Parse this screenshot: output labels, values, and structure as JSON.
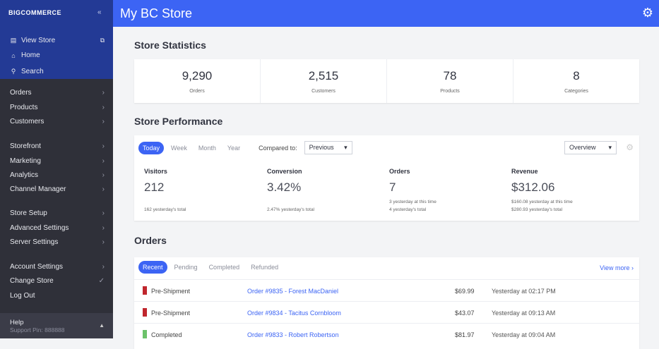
{
  "sidebar": {
    "logo": "BIGCOMMERCE",
    "top": [
      {
        "label": "View Store",
        "icon": "store-icon"
      },
      {
        "label": "Home",
        "icon": "home-icon"
      },
      {
        "label": "Search",
        "icon": "search-icon"
      }
    ],
    "groups": [
      [
        "Orders",
        "Products",
        "Customers"
      ],
      [
        "Storefront",
        "Marketing",
        "Analytics",
        "Channel Manager"
      ],
      [
        "Store Setup",
        "Advanced Settings",
        "Server Settings"
      ],
      [
        "Account Settings",
        "Change Store",
        "Log Out"
      ]
    ],
    "help": "Help",
    "support_pin": "Support Pin: 888888"
  },
  "header": {
    "title": "My BC Store"
  },
  "stats": {
    "title": "Store Statistics",
    "items": [
      {
        "value": "9,290",
        "label": "Orders"
      },
      {
        "value": "2,515",
        "label": "Customers"
      },
      {
        "value": "78",
        "label": "Products"
      },
      {
        "value": "8",
        "label": "Categories"
      }
    ]
  },
  "performance": {
    "title": "Store Performance",
    "tabs": [
      "Today",
      "Week",
      "Month",
      "Year"
    ],
    "compared_label": "Compared to:",
    "compared_value": "Previous",
    "view": "Overview",
    "metrics": [
      {
        "label": "Visitors",
        "value": "212",
        "sub": [
          "",
          "162 yesterday's total"
        ]
      },
      {
        "label": "Conversion",
        "value": "3.42%",
        "sub": [
          "",
          "2.47% yesterday's total"
        ]
      },
      {
        "label": "Orders",
        "value": "7",
        "sub": [
          "3 yesterday at this time",
          "4 yesterday's total"
        ]
      },
      {
        "label": "Revenue",
        "value": "$312.06",
        "sub": [
          "$160.08 yesterday at this time",
          "$280.93 yesterday's total"
        ]
      }
    ]
  },
  "orders": {
    "title": "Orders",
    "tabs": [
      "Recent",
      "Pending",
      "Completed",
      "Refunded"
    ],
    "view_more": "View more ›",
    "rows": [
      {
        "status": "Pre-Shipment",
        "color": "#c0262d",
        "order": "Order #9835 - Forest MacDaniel",
        "amount": "$69.99",
        "time": "Yesterday at 02:17 PM"
      },
      {
        "status": "Pre-Shipment",
        "color": "#c0262d",
        "order": "Order #9834 - Tacitus Cornbloom",
        "amount": "$43.07",
        "time": "Yesterday at 09:13 AM"
      },
      {
        "status": "Completed",
        "color": "#6cc26a",
        "order": "Order #9833 - Robert Robertson",
        "amount": "$81.97",
        "time": "Yesterday at 09:04 AM"
      }
    ]
  }
}
